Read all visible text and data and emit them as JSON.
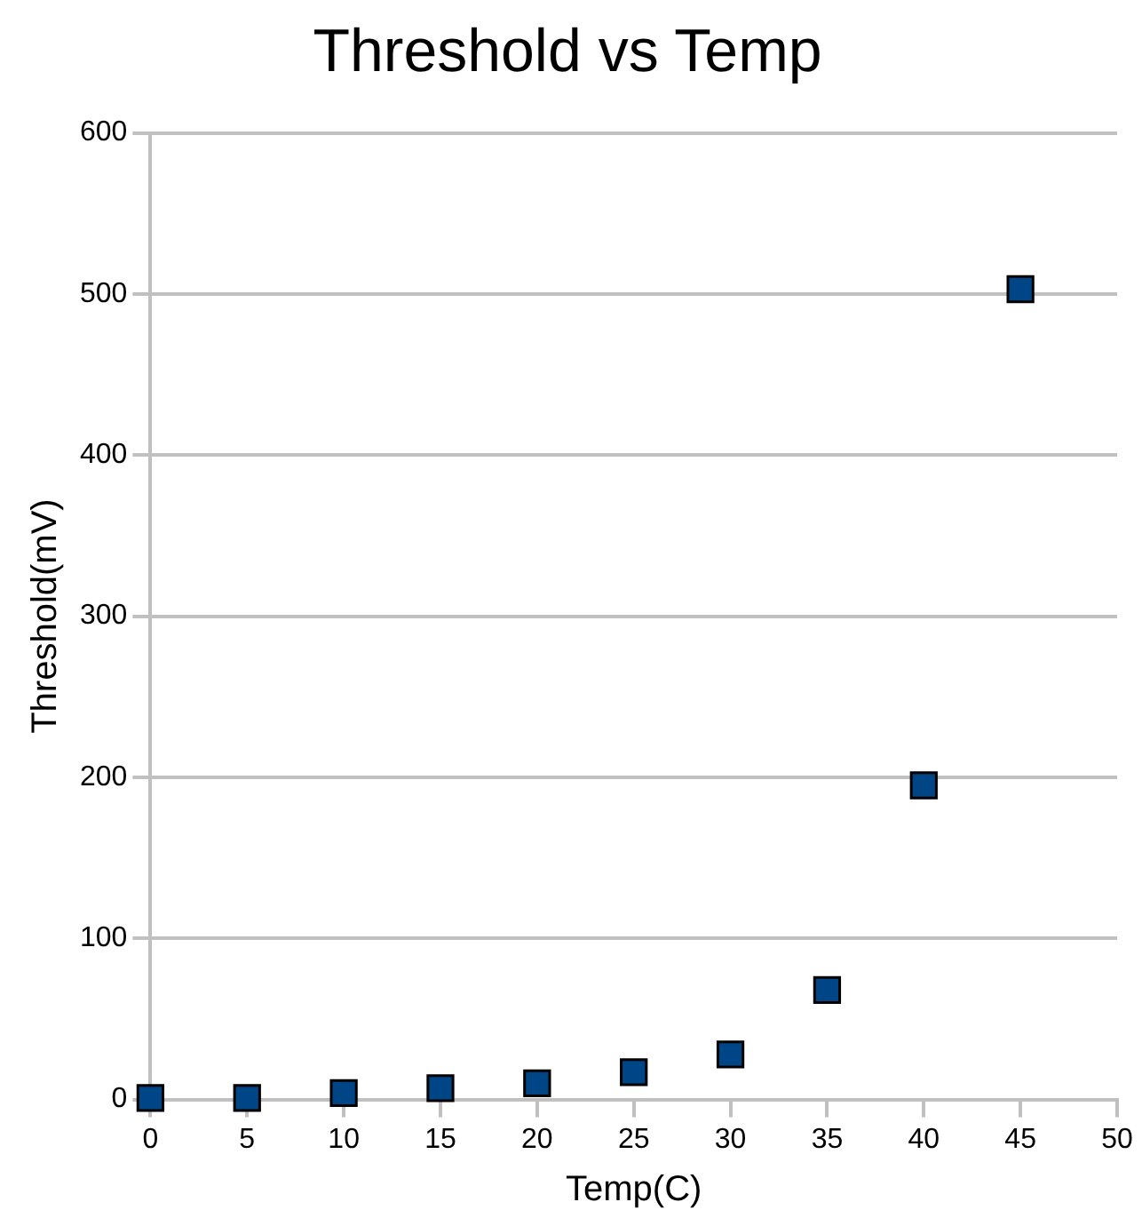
{
  "chart_data": {
    "type": "scatter",
    "title": "Threshold vs Temp",
    "xlabel": "Temp(C)",
    "ylabel": "Threshold(mV)",
    "x": [
      0,
      5,
      10,
      15,
      20,
      25,
      30,
      35,
      40,
      45
    ],
    "series": [
      {
        "color": "#004586",
        "values": [
          1,
          1,
          4,
          7,
          10,
          17,
          28,
          68,
          195,
          503
        ]
      }
    ],
    "xlim": [
      0,
      50
    ],
    "xticks": [
      0,
      5,
      10,
      15,
      20,
      25,
      30,
      35,
      40,
      45,
      50
    ],
    "ylim": [
      0,
      600
    ],
    "yticks": [
      0,
      100,
      200,
      300,
      400,
      500,
      600
    ],
    "grid": "y",
    "legend": false,
    "marker": "square"
  }
}
